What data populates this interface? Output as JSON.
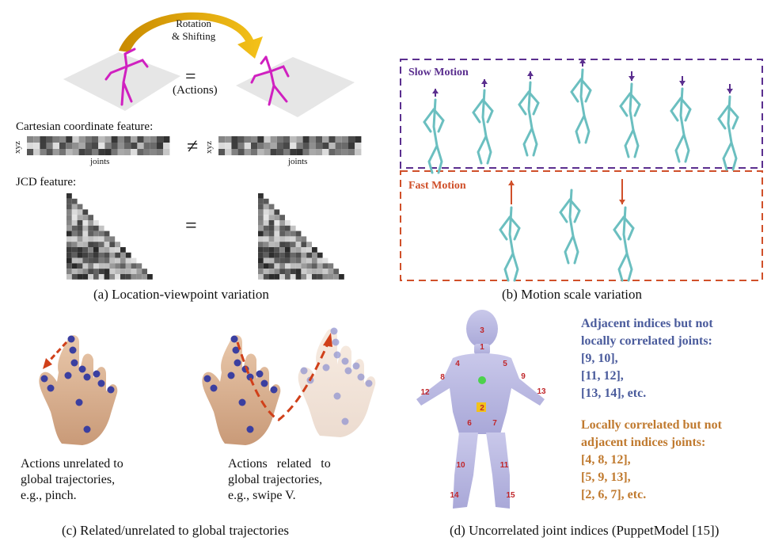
{
  "panel_a": {
    "rotation_label_line1": "Rotation",
    "rotation_label_line2": "& Shifting",
    "equals": "=",
    "actions_label": "(Actions)",
    "cartesian_label": "Cartesian coordinate feature:",
    "xyz_label": "xyz",
    "joints_label": "joints",
    "not_equal": "≠",
    "jcd_label": "JCD feature:",
    "caption": "(a) Location-viewpoint variation"
  },
  "panel_b": {
    "slow_label": "Slow Motion",
    "fast_label": "Fast Motion",
    "caption": "(b) Motion scale variation",
    "colors": {
      "slow": "#5b2f8f",
      "fast": "#d0502a",
      "skeleton": "#6bbfc0"
    }
  },
  "panel_c": {
    "left_text": [
      "Actions unrelated to",
      "global trajectories,",
      "e.g., pinch."
    ],
    "right_text": [
      "Actions related to",
      "global trajectories,",
      "e.g., swipe V."
    ],
    "caption": "(c) Related/unrelated to global trajectories"
  },
  "panel_d": {
    "joint_numbers": [
      "3",
      "1",
      "4",
      "5",
      "8",
      "9",
      "12",
      "13",
      "2",
      "6",
      "7",
      "10",
      "11",
      "14",
      "15"
    ],
    "blue_text": [
      "Adjacent indices but not",
      "locally correlated joints:",
      "[9, 10],",
      "[11, 12],",
      "[13, 14], etc."
    ],
    "orange_text": [
      "Locally correlated but not",
      "adjacent indices joints:",
      "[4, 8, 12],",
      "[5, 9, 13],",
      "[2, 6, 7], etc."
    ],
    "caption": "(d) Uncorrelated joint indices (PuppetModel [15])"
  }
}
